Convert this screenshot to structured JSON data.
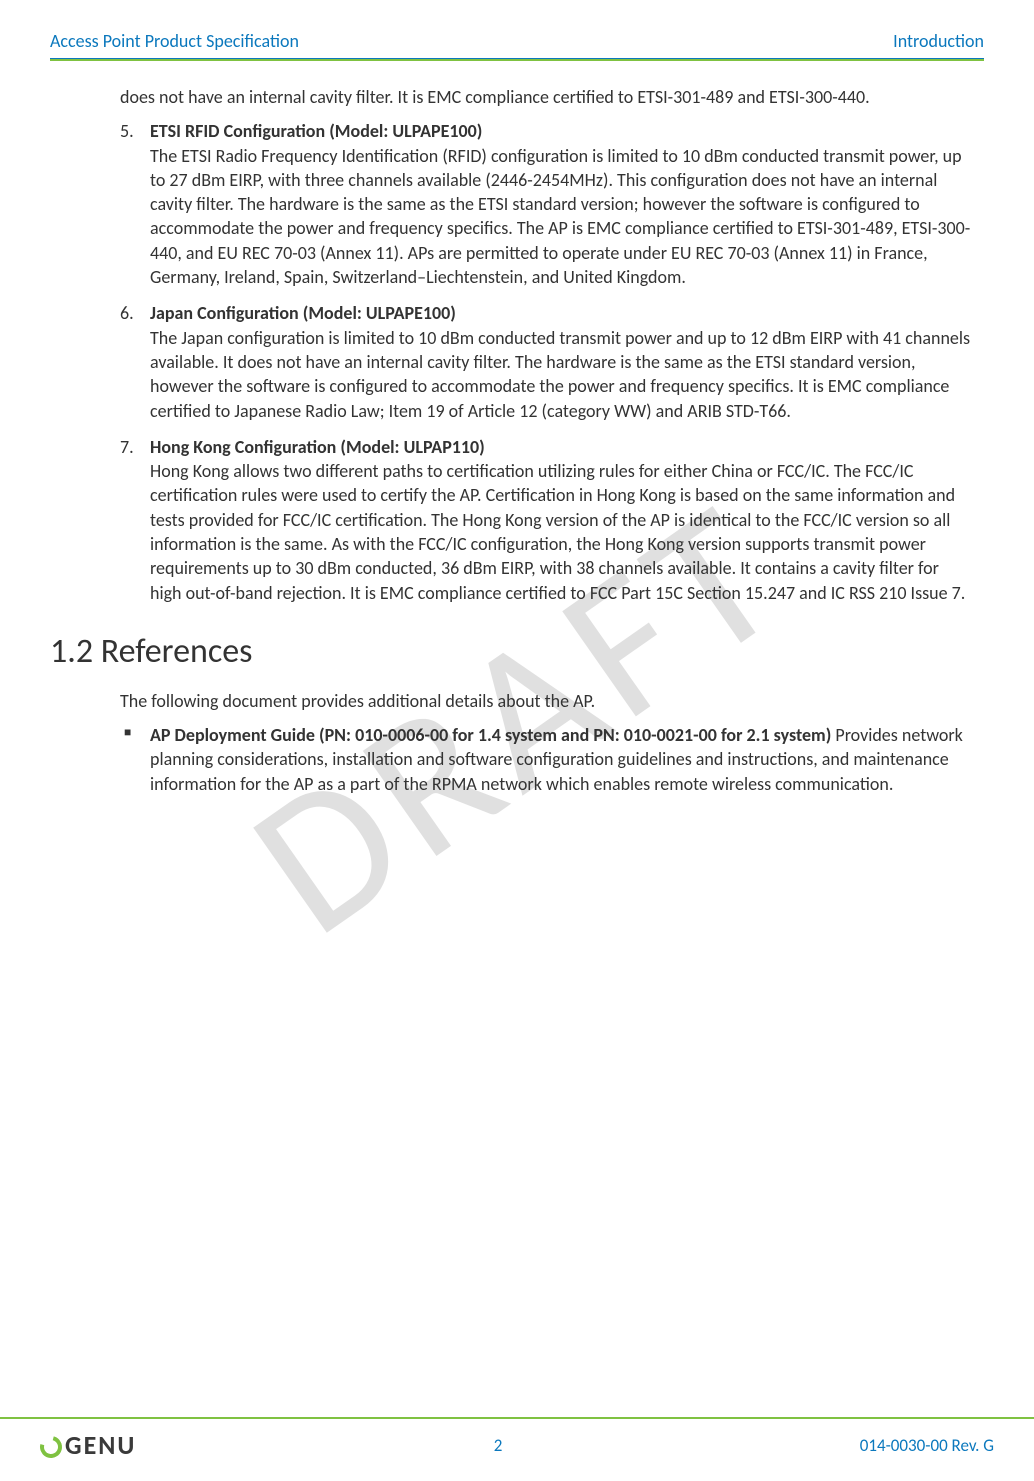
{
  "header": {
    "left": "Access Point Product Specification",
    "right": "Introduction"
  },
  "watermark": "DRAFT",
  "intro_para": "does not have an internal cavity filter. It is EMC compliance certified to ETSI-301-489 and ETSI-300-440.",
  "items": [
    {
      "title": "ETSI RFID Configuration (Model: ULPAPE100)",
      "body": "The ETSI Radio Frequency Identification (RFID) configuration is limited to 10 dBm conducted transmit power, up to 27 dBm EIRP, with three channels available (2446-2454MHz). This configuration does not have an internal cavity filter. The hardware is the same as the ETSI standard version; however the software is configured to accommodate the power and frequency specifics. The AP is EMC compliance certified to ETSI-301-489, ETSI-300-440, and EU REC 70-03 (Annex 11). APs are permitted to operate under EU REC 70-03 (Annex 11) in France, Germany, Ireland, Spain, Switzerland–Liechtenstein, and United Kingdom."
    },
    {
      "title": "Japan Configuration (Model: ULPAPE100)",
      "body": "The Japan configuration is limited to 10 dBm conducted transmit power and up to 12 dBm EIRP with 41 channels available. It does not have an internal cavity filter. The hardware is the same as the ETSI standard version, however the software is configured to accommodate the power and frequency specifics. It is EMC compliance certified to Japanese Radio Law; Item 19 of Article 12 (category WW) and ARIB STD-T66."
    },
    {
      "title": "Hong Kong Configuration (Model: ULPAP110)",
      "body": "Hong Kong allows two different paths to certification utilizing rules for either China or FCC/IC. The FCC/IC certification rules were used to certify the AP. Certification in Hong Kong is based on the same information and tests provided for FCC/IC certification. The Hong Kong version of the AP is identical to the FCC/IC version so all information is the same. As with the FCC/IC configuration, the Hong Kong version supports transmit power requirements up to 30 dBm conducted, 36 dBm EIRP, with 38 channels available. It contains a cavity filter for high out-of-band rejection. It is EMC compliance certified to FCC Part 15C Section 15.247 and IC RSS 210 Issue 7."
    }
  ],
  "section_heading": "1.2 References",
  "section_intro": "The following document provides additional details about the AP.",
  "references": [
    {
      "title": "AP Deployment Guide (PN: 010-0006-00 for 1.4 system and PN: 010-0021-00 for 2.1 system)",
      "body": "Provides network planning considerations, installation and software configuration guidelines and instructions, and maintenance information for the AP as a part of the RPMA network which enables remote wireless communication."
    }
  ],
  "footer": {
    "logo_text": "GENU",
    "page_number": "2",
    "doc_rev": "014-0030-00 Rev. G"
  },
  "colors": {
    "header_text": "#0b78bd",
    "rule_green": "#7fc241",
    "body_text": "#333333"
  }
}
